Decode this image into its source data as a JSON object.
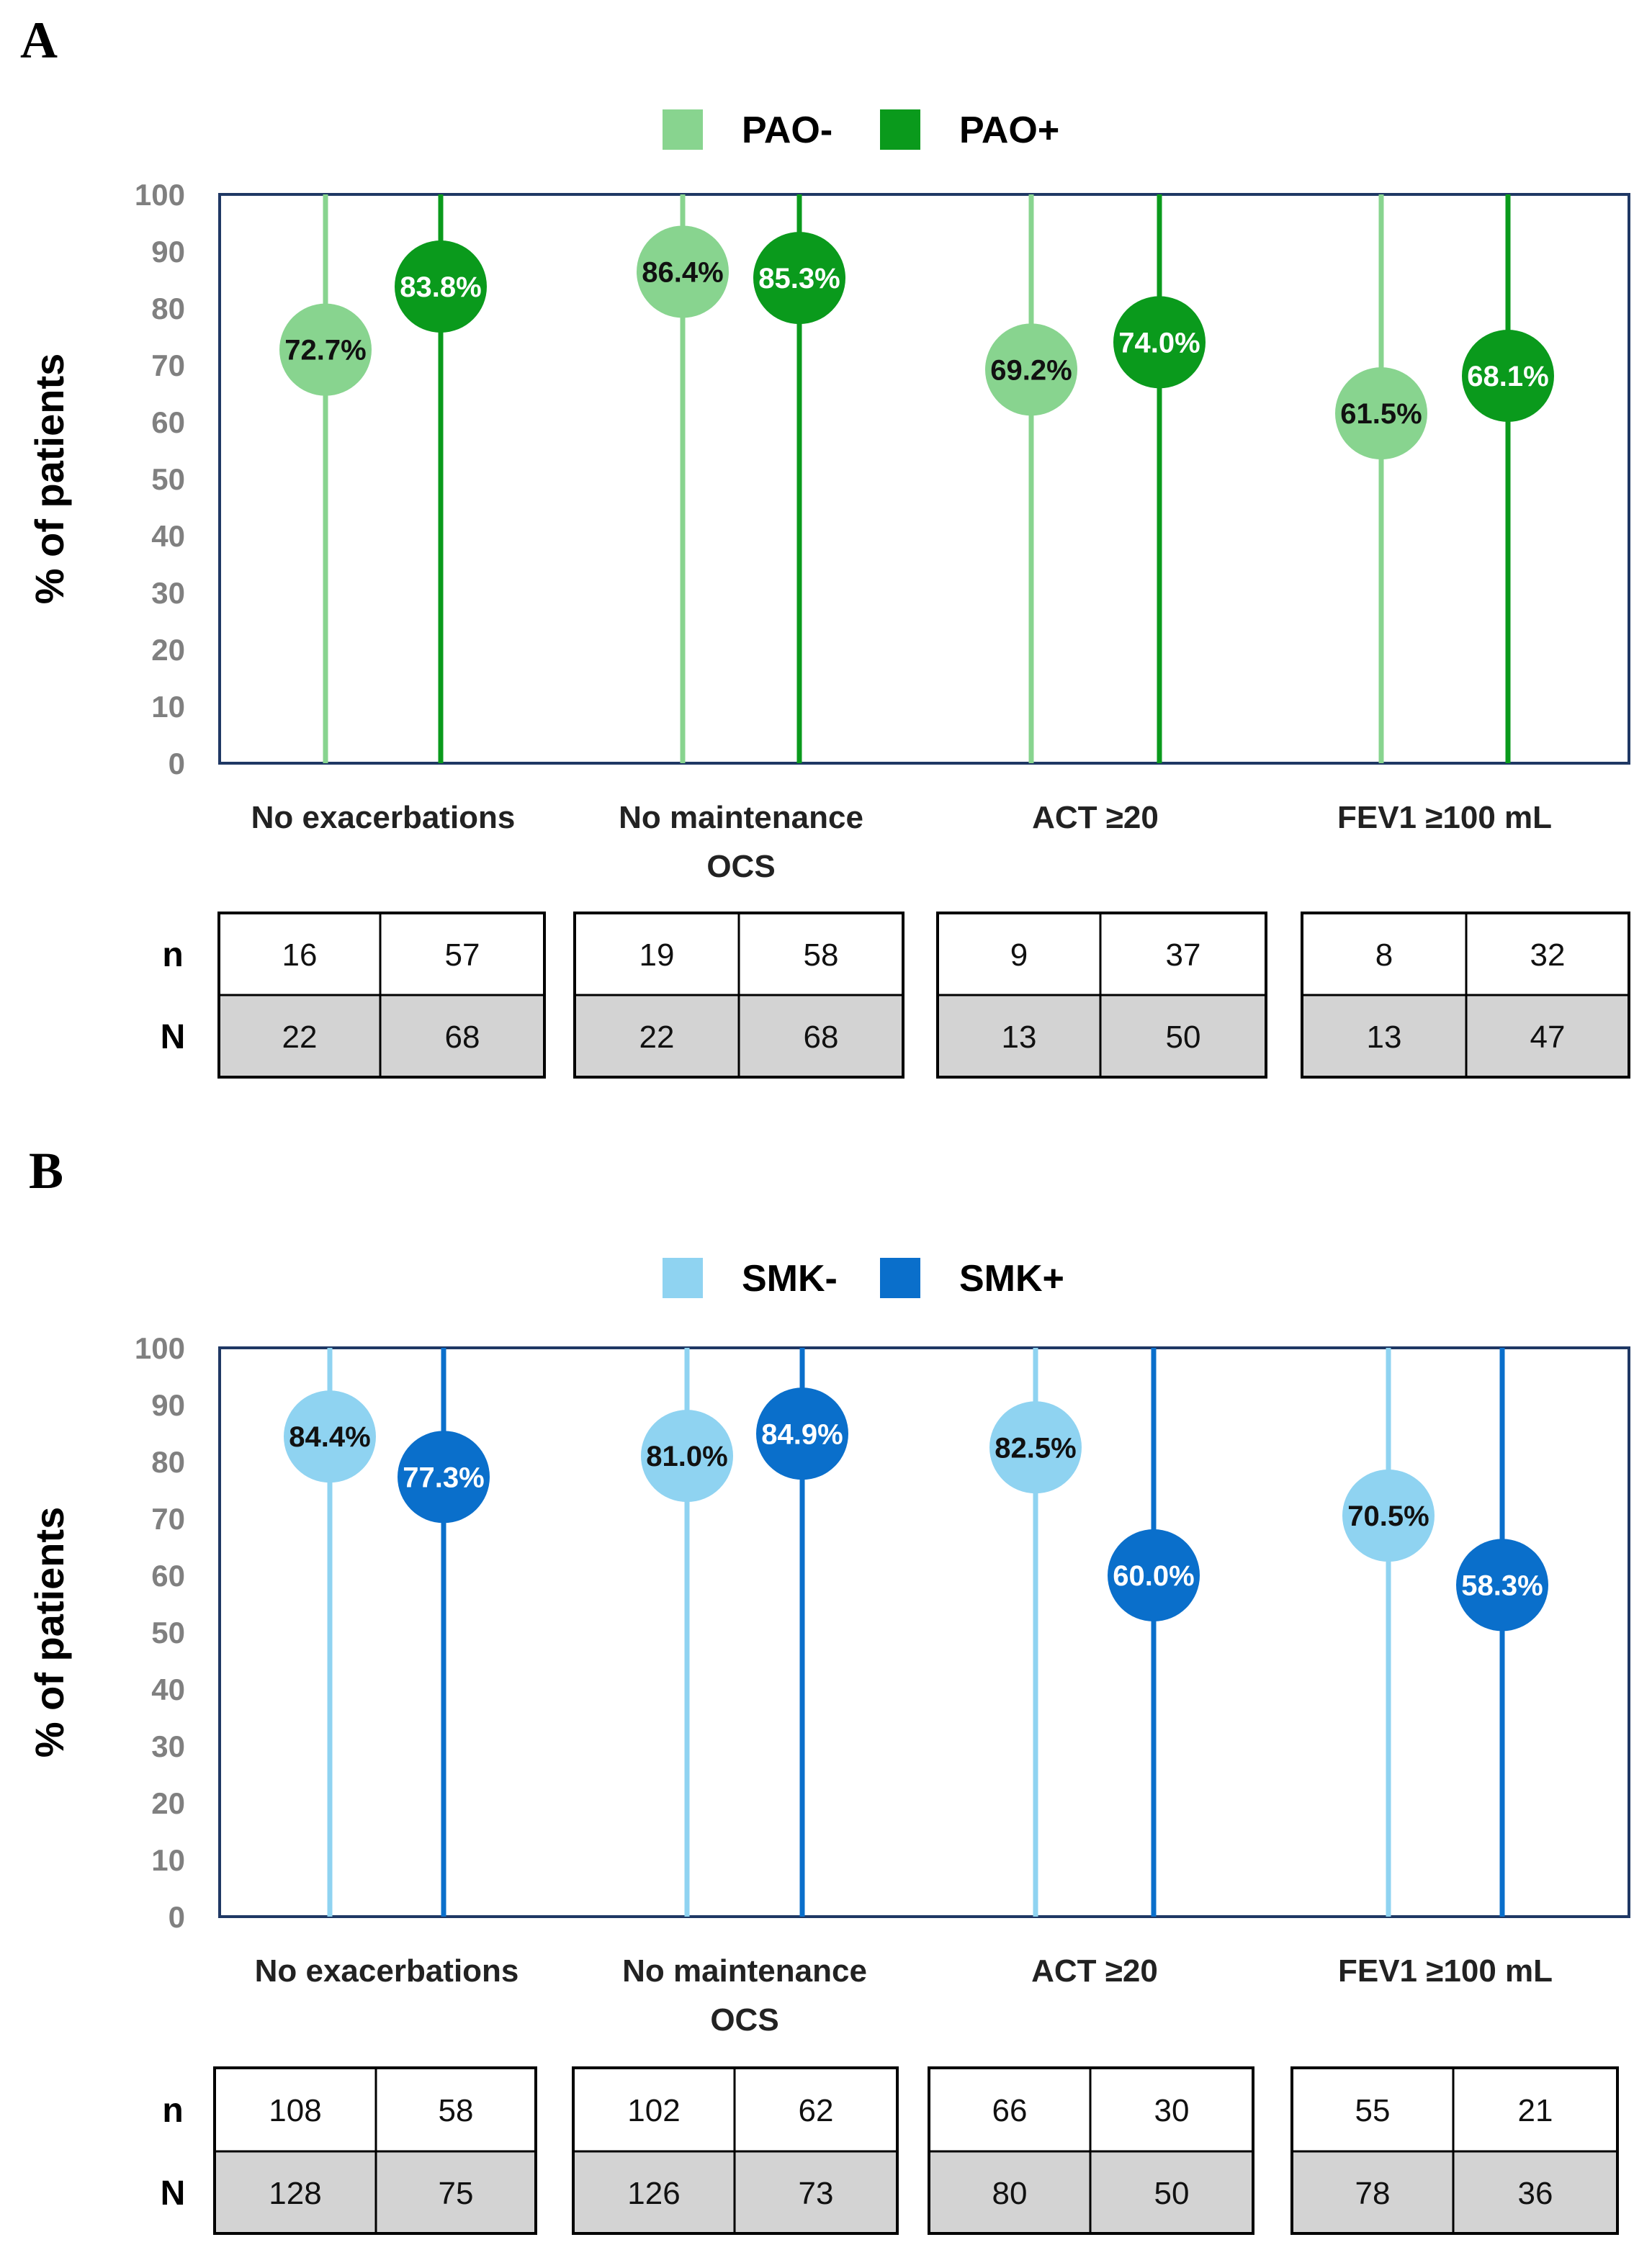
{
  "chart_data": [
    {
      "type": "lollipop",
      "panel": "A",
      "ylabel": "% of patients",
      "ylim": [
        0,
        100
      ],
      "yticks": [
        0,
        10,
        20,
        30,
        40,
        50,
        60,
        70,
        80,
        90,
        100
      ],
      "categories": [
        "No exacerbations",
        "No maintenance OCS",
        "ACT ≥20",
        "FEV1 ≥100 mL"
      ],
      "category_lines": [
        [
          "No exacerbations"
        ],
        [
          "No maintenance",
          "OCS"
        ],
        [
          "ACT ≥20"
        ],
        [
          "FEV1 ≥100 mL"
        ]
      ],
      "series": [
        {
          "name": "PAO-",
          "color": "#88d48f",
          "text_color": "#111111",
          "values": [
            72.7,
            86.4,
            69.2,
            61.5
          ],
          "labels": [
            "72.7%",
            "86.4%",
            "69.2%",
            "61.5%"
          ],
          "n": [
            "16",
            "19",
            "9",
            "8"
          ],
          "N": [
            "22",
            "22",
            "13",
            "13"
          ]
        },
        {
          "name": "PAO+",
          "color": "#0a9a1c",
          "text_color": "#ffffff",
          "values": [
            83.8,
            85.3,
            74.0,
            68.1
          ],
          "labels": [
            "83.8%",
            "85.3%",
            "74.0%",
            "68.1%"
          ],
          "n": [
            "57",
            "58",
            "37",
            "32"
          ],
          "N": [
            "68",
            "68",
            "50",
            "47"
          ]
        }
      ],
      "table_rows": [
        "n",
        "N"
      ]
    },
    {
      "type": "lollipop",
      "panel": "B",
      "ylabel": "% of patients",
      "ylim": [
        0,
        100
      ],
      "yticks": [
        0,
        10,
        20,
        30,
        40,
        50,
        60,
        70,
        80,
        90,
        100
      ],
      "categories": [
        "No exacerbations",
        "No maintenance OCS",
        "ACT ≥20",
        "FEV1 ≥100 mL"
      ],
      "category_lines": [
        [
          "No exacerbations"
        ],
        [
          "No maintenance",
          "OCS"
        ],
        [
          "ACT ≥20"
        ],
        [
          "FEV1 ≥100 mL"
        ]
      ],
      "series": [
        {
          "name": "SMK-",
          "color": "#8fd3f1",
          "text_color": "#111111",
          "values": [
            84.4,
            81.0,
            82.5,
            70.5
          ],
          "labels": [
            "84.4%",
            "81.0%",
            "82.5%",
            "70.5%"
          ],
          "n": [
            "108",
            "102",
            "66",
            "55"
          ],
          "N": [
            "128",
            "126",
            "80",
            "78"
          ]
        },
        {
          "name": "SMK+",
          "color": "#0a6fcb",
          "text_color": "#ffffff",
          "values": [
            77.3,
            84.9,
            60.0,
            58.3
          ],
          "labels": [
            "77.3%",
            "84.9%",
            "60.0%",
            "58.3%"
          ],
          "n": [
            "58",
            "62",
            "30",
            "21"
          ],
          "N": [
            "75",
            "73",
            "50",
            "36"
          ]
        }
      ],
      "table_rows": [
        "n",
        "N"
      ]
    }
  ],
  "colors": {
    "frame": "#1f3864",
    "table_fill_N": "#d3d3d3",
    "tick": "#808080"
  }
}
